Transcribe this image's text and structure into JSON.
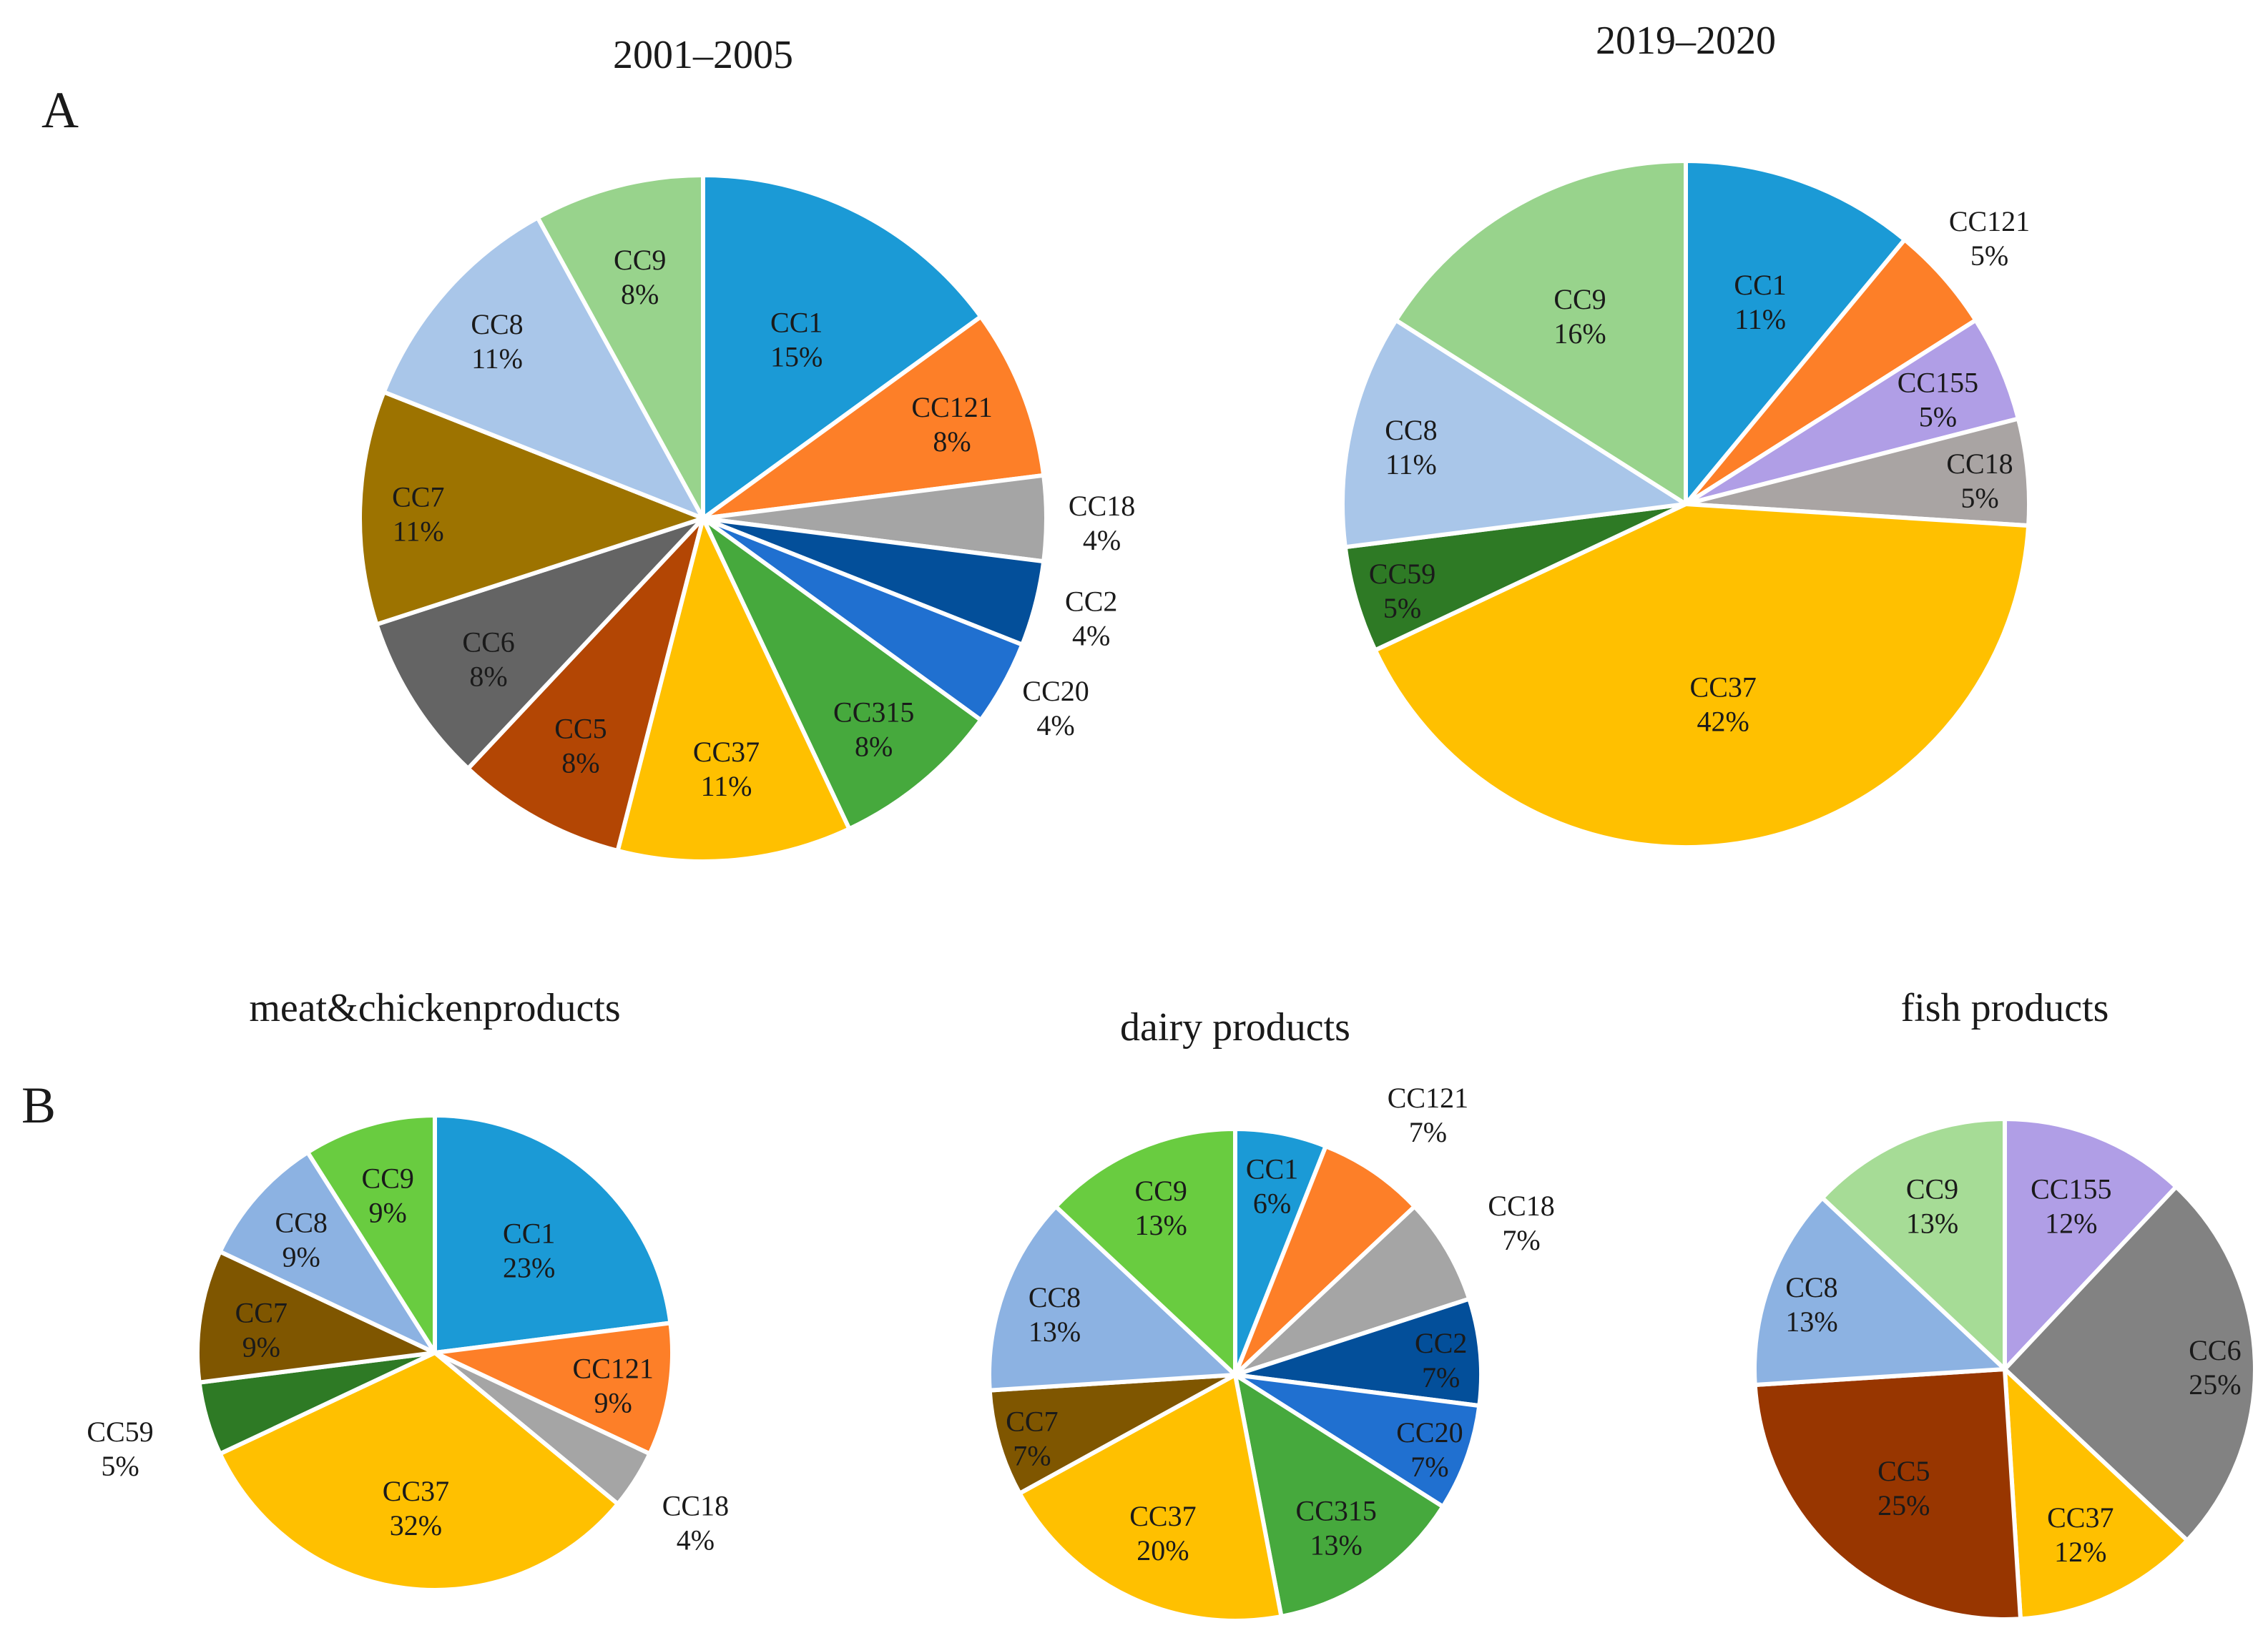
{
  "panels": {
    "A": "A",
    "B": "B"
  },
  "chart_data": [
    {
      "type": "pie",
      "panel": "A",
      "title": "2001–2005",
      "slices": [
        {
          "label": "CC1",
          "pct": "15%",
          "value": 15,
          "color": "#1b9ad6"
        },
        {
          "label": "CC121",
          "pct": "8%",
          "value": 8,
          "color": "#fd7f28"
        },
        {
          "label": "CC18",
          "pct": "4%",
          "value": 4,
          "color": "#a5a5a5"
        },
        {
          "label": "CC2",
          "pct": "4%",
          "value": 4,
          "color": "#034f9a"
        },
        {
          "label": "CC20",
          "pct": "4%",
          "value": 4,
          "color": "#2070d0"
        },
        {
          "label": "CC315",
          "pct": "8%",
          "value": 8,
          "color": "#46a93d"
        },
        {
          "label": "CC37",
          "pct": "11%",
          "value": 11,
          "color": "#ffc000"
        },
        {
          "label": "CC5",
          "pct": "8%",
          "value": 8,
          "color": "#b34604"
        },
        {
          "label": "CC6",
          "pct": "8%",
          "value": 8,
          "color": "#646464"
        },
        {
          "label": "CC7",
          "pct": "11%",
          "value": 11,
          "color": "#9d7300"
        },
        {
          "label": "CC8",
          "pct": "11%",
          "value": 11,
          "color": "#a9c6e9"
        },
        {
          "label": "CC9",
          "pct": "8%",
          "value": 8,
          "color": "#98d38c"
        }
      ]
    },
    {
      "type": "pie",
      "panel": "A",
      "title": "2019–2020",
      "slices": [
        {
          "label": "CC1",
          "pct": "11%",
          "value": 11,
          "color": "#1b9ad6"
        },
        {
          "label": "CC121",
          "pct": "5%",
          "value": 5,
          "color": "#fd7f28"
        },
        {
          "label": "CC155",
          "pct": "5%",
          "value": 5,
          "color": "#b09ee6"
        },
        {
          "label": "CC18",
          "pct": "5%",
          "value": 5,
          "color": "#a9a4a3"
        },
        {
          "label": "CC37",
          "pct": "42%",
          "value": 42,
          "color": "#ffc000"
        },
        {
          "label": "CC59",
          "pct": "5%",
          "value": 5,
          "color": "#2e7a25"
        },
        {
          "label": "CC8",
          "pct": "11%",
          "value": 11,
          "color": "#a9c6e9"
        },
        {
          "label": "CC9",
          "pct": "16%",
          "value": 16,
          "color": "#98d38c"
        }
      ]
    },
    {
      "type": "pie",
      "panel": "B",
      "title": "meat&chickenproducts",
      "slices": [
        {
          "label": "CC1",
          "pct": "23%",
          "value": 23,
          "color": "#1b9ad6"
        },
        {
          "label": "CC121",
          "pct": "9%",
          "value": 9,
          "color": "#fd7f28"
        },
        {
          "label": "CC18",
          "pct": "4%",
          "value": 4,
          "color": "#a5a5a5"
        },
        {
          "label": "CC37",
          "pct": "32%",
          "value": 32,
          "color": "#ffc000"
        },
        {
          "label": "CC59",
          "pct": "5%",
          "value": 5,
          "color": "#2e7a25"
        },
        {
          "label": "CC7",
          "pct": "9%",
          "value": 9,
          "color": "#7f5600"
        },
        {
          "label": "CC8",
          "pct": "9%",
          "value": 9,
          "color": "#8cb2e2"
        },
        {
          "label": "CC9",
          "pct": "9%",
          "value": 9,
          "color": "#69cc40"
        }
      ]
    },
    {
      "type": "pie",
      "panel": "B",
      "title": "dairy products",
      "slices": [
        {
          "label": "CC1",
          "pct": "6%",
          "value": 6,
          "color": "#1b9ad6"
        },
        {
          "label": "CC121",
          "pct": "7%",
          "value": 7,
          "color": "#fd7f28"
        },
        {
          "label": "CC18",
          "pct": "7%",
          "value": 7,
          "color": "#a5a5a5"
        },
        {
          "label": "CC2",
          "pct": "7%",
          "value": 7,
          "color": "#034f9a"
        },
        {
          "label": "CC20",
          "pct": "7%",
          "value": 7,
          "color": "#2070d0"
        },
        {
          "label": "CC315",
          "pct": "13%",
          "value": 13,
          "color": "#46a93d"
        },
        {
          "label": "CC37",
          "pct": "20%",
          "value": 20,
          "color": "#ffc000"
        },
        {
          "label": "CC7",
          "pct": "7%",
          "value": 7,
          "color": "#7f5600"
        },
        {
          "label": "CC8",
          "pct": "13%",
          "value": 13,
          "color": "#8cb2e2"
        },
        {
          "label": "CC9",
          "pct": "13%",
          "value": 13,
          "color": "#69cc40"
        }
      ]
    },
    {
      "type": "pie",
      "panel": "B",
      "title": "fish products",
      "slices": [
        {
          "label": "CC155",
          "pct": "12%",
          "value": 12,
          "color": "#b09ee6"
        },
        {
          "label": "CC6",
          "pct": "25%",
          "value": 25,
          "color": "#828282"
        },
        {
          "label": "CC37",
          "pct": "12%",
          "value": 12,
          "color": "#ffc000"
        },
        {
          "label": "CC5",
          "pct": "25%",
          "value": 25,
          "color": "#983600"
        },
        {
          "label": "CC8",
          "pct": "13%",
          "value": 13,
          "color": "#8cb2e2"
        },
        {
          "label": "CC9",
          "pct": "13%",
          "value": 13,
          "color": "#a6dc96"
        }
      ]
    }
  ]
}
